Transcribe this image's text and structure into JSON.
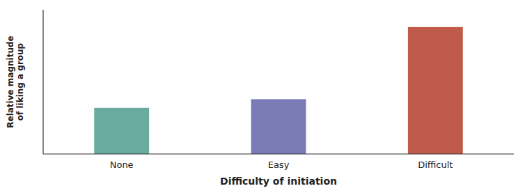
{
  "chart_data": {
    "type": "bar",
    "categories": [
      "None",
      "Easy",
      "Difficult"
    ],
    "values": [
      0.32,
      0.38,
      0.88
    ],
    "colors": [
      "#6aaba0",
      "#7b7bb8",
      "#c05a4a"
    ],
    "xlabel": "Difficulty of initiation",
    "ylabel": "Relative magnitude\nof liking a group",
    "ylim": [
      0,
      1
    ],
    "tick_labels": "x"
  }
}
